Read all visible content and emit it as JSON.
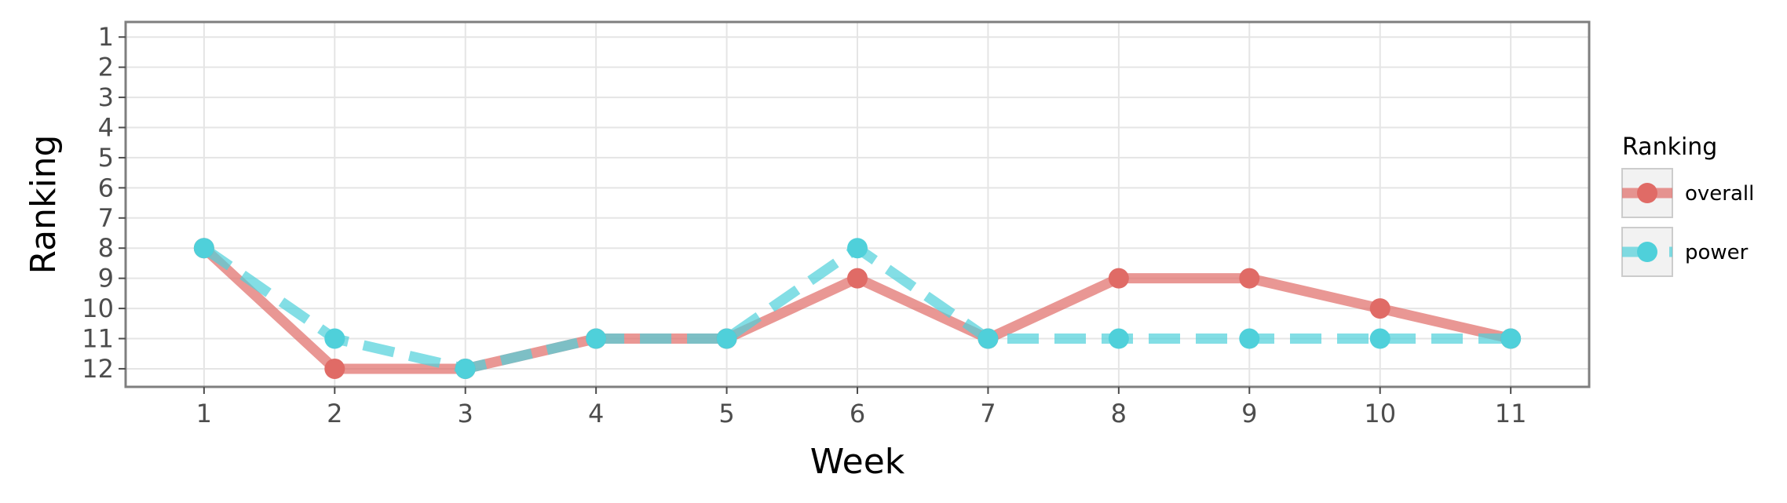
{
  "chart_data": {
    "type": "line",
    "title": "",
    "xlabel": "Week",
    "ylabel": "Ranking",
    "x": [
      1,
      2,
      3,
      4,
      5,
      6,
      7,
      8,
      9,
      10,
      11
    ],
    "x_ticks": [
      "1",
      "2",
      "3",
      "4",
      "5",
      "6",
      "7",
      "8",
      "9",
      "10",
      "11"
    ],
    "y_ticks": [
      "1",
      "2",
      "3",
      "4",
      "5",
      "6",
      "7",
      "8",
      "9",
      "10",
      "11",
      "12"
    ],
    "xlim": [
      0.4,
      11.6
    ],
    "ylim": [
      0.5,
      12.6
    ],
    "y_reversed": true,
    "grid": true,
    "legend": {
      "title": "Ranking",
      "placement": "right"
    },
    "series": [
      {
        "name": "overall",
        "color": "#e06b66",
        "line_style": "solid",
        "values": [
          8,
          12,
          12,
          11,
          11,
          9,
          11,
          9,
          9,
          10,
          11
        ]
      },
      {
        "name": "power",
        "color": "#4fd0da",
        "line_style": "dashed",
        "values": [
          8,
          11,
          12,
          11,
          11,
          8,
          11,
          11,
          11,
          11,
          11
        ]
      }
    ]
  }
}
